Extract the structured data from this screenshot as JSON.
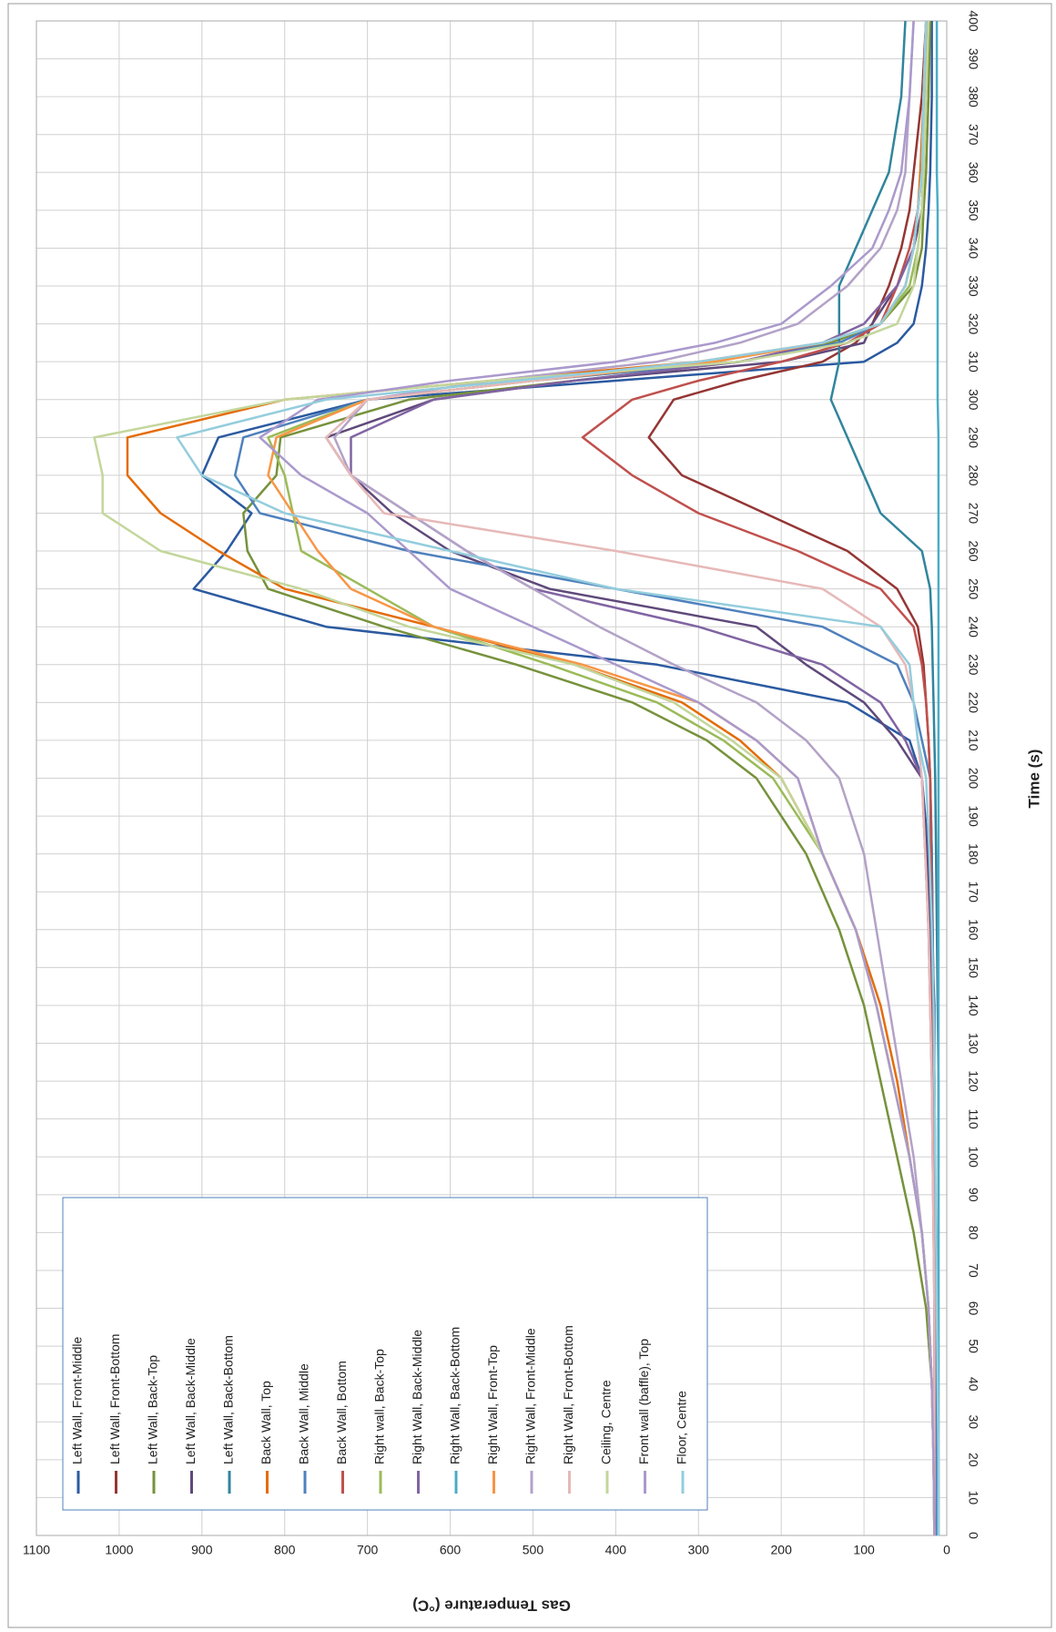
{
  "chart_data": {
    "type": "line",
    "x_label": "Time (s)",
    "y_label": "Gas Temperature (°C)",
    "x": [
      0,
      20,
      40,
      60,
      80,
      100,
      120,
      140,
      160,
      180,
      200,
      210,
      220,
      230,
      240,
      250,
      260,
      270,
      280,
      290,
      300,
      305,
      310,
      315,
      320,
      330,
      340,
      350,
      360,
      380,
      400
    ],
    "xlim": [
      0,
      400
    ],
    "xticks": [
      0,
      10,
      20,
      30,
      40,
      50,
      60,
      70,
      80,
      90,
      100,
      110,
      120,
      130,
      140,
      150,
      160,
      170,
      180,
      190,
      200,
      210,
      220,
      230,
      240,
      250,
      260,
      270,
      280,
      290,
      300,
      310,
      320,
      330,
      340,
      350,
      360,
      370,
      380,
      390,
      400
    ],
    "ylim": [
      0,
      1100
    ],
    "yticks": [
      0,
      100,
      200,
      300,
      400,
      500,
      600,
      700,
      800,
      900,
      1000,
      1100
    ],
    "grid": true,
    "series": [
      {
        "name": "Left Wall, Front-Middle",
        "color": "#2b5aa0",
        "values": [
          15,
          15,
          15,
          15,
          15,
          15,
          15,
          15,
          18,
          22,
          30,
          45,
          120,
          350,
          750,
          910,
          870,
          840,
          900,
          880,
          700,
          400,
          100,
          60,
          40,
          30,
          25,
          22,
          20,
          18,
          18
        ]
      },
      {
        "name": "Left Wall, Front-Bottom",
        "color": "#943634",
        "values": [
          15,
          15,
          15,
          15,
          15,
          15,
          15,
          16,
          17,
          18,
          20,
          22,
          25,
          28,
          35,
          60,
          120,
          220,
          320,
          360,
          330,
          250,
          150,
          110,
          90,
          70,
          55,
          45,
          40,
          30,
          25
        ]
      },
      {
        "name": "Left Wall, Back-Top",
        "color": "#76923c",
        "values": [
          15,
          16,
          18,
          25,
          40,
          60,
          80,
          100,
          130,
          170,
          230,
          290,
          380,
          520,
          680,
          820,
          845,
          850,
          810,
          805,
          650,
          450,
          250,
          140,
          80,
          40,
          30,
          28,
          25,
          22,
          20
        ]
      },
      {
        "name": "Left Wall, Back-Middle",
        "color": "#5f497a",
        "values": [
          15,
          15,
          15,
          15,
          15,
          16,
          17,
          18,
          20,
          24,
          30,
          60,
          100,
          170,
          230,
          480,
          600,
          670,
          720,
          750,
          620,
          450,
          200,
          100,
          90,
          60,
          40,
          30,
          28,
          25,
          22
        ]
      },
      {
        "name": "Left Wall, Back-Bottom",
        "color": "#31859c",
        "values": [
          10,
          10,
          10,
          10,
          10,
          10,
          10,
          11,
          12,
          13,
          14,
          15,
          16,
          17,
          18,
          20,
          30,
          80,
          100,
          120,
          140,
          135,
          130,
          130,
          130,
          130,
          110,
          90,
          70,
          55,
          50
        ]
      },
      {
        "name": "Back Wall, Top",
        "color": "#e46c0a",
        "values": [
          15,
          16,
          18,
          22,
          30,
          45,
          60,
          80,
          110,
          150,
          200,
          250,
          320,
          450,
          620,
          800,
          880,
          950,
          990,
          990,
          800,
          550,
          300,
          150,
          80,
          50,
          40,
          35,
          32,
          28,
          25
        ]
      },
      {
        "name": "Back Wall, Middle",
        "color": "#4f81bd",
        "values": [
          12,
          12,
          13,
          13,
          14,
          14,
          15,
          16,
          17,
          18,
          20,
          30,
          40,
          60,
          150,
          400,
          650,
          830,
          860,
          850,
          700,
          500,
          250,
          130,
          80,
          50,
          40,
          35,
          30,
          28,
          25
        ]
      },
      {
        "name": "Back Wall, Bottom",
        "color": "#c0504d",
        "values": [
          15,
          15,
          15,
          15,
          15,
          16,
          16,
          17,
          18,
          19,
          20,
          22,
          25,
          30,
          40,
          80,
          180,
          300,
          380,
          440,
          380,
          300,
          200,
          120,
          80,
          60,
          45,
          35,
          30,
          25,
          22
        ]
      },
      {
        "name": "Right wall, Back-Top",
        "color": "#9bbb59",
        "values": [
          15,
          16,
          18,
          22,
          30,
          45,
          65,
          85,
          110,
          150,
          210,
          270,
          350,
          480,
          620,
          700,
          780,
          790,
          800,
          820,
          700,
          500,
          280,
          150,
          80,
          45,
          35,
          30,
          28,
          25,
          22
        ]
      },
      {
        "name": "Right Wall, Back-Middle",
        "color": "#8064a2",
        "values": [
          15,
          15,
          15,
          15,
          16,
          17,
          18,
          20,
          22,
          26,
          30,
          50,
          80,
          150,
          300,
          500,
          580,
          650,
          720,
          720,
          620,
          450,
          250,
          150,
          100,
          60,
          40,
          35,
          30,
          28,
          25
        ]
      },
      {
        "name": "Right Wall, Back-Bottom",
        "color": "#4bacc6",
        "values": [
          10,
          10,
          10,
          10,
          10,
          10,
          10,
          10,
          10,
          10,
          10,
          10,
          10,
          10,
          10,
          10,
          10,
          10,
          10,
          10,
          11,
          11,
          11,
          11,
          11,
          11,
          11,
          11,
          12,
          12,
          12
        ]
      },
      {
        "name": "Right Wall, Front-Top",
        "color": "#f79646",
        "values": [
          15,
          16,
          18,
          22,
          30,
          45,
          65,
          85,
          110,
          150,
          180,
          230,
          300,
          440,
          620,
          720,
          760,
          790,
          820,
          810,
          700,
          500,
          280,
          150,
          80,
          50,
          40,
          35,
          30,
          28,
          25
        ]
      },
      {
        "name": "Right Wall, Front-Middle",
        "color": "#b3a2c7",
        "values": [
          15,
          16,
          18,
          22,
          30,
          40,
          55,
          70,
          85,
          100,
          130,
          170,
          230,
          330,
          420,
          500,
          580,
          650,
          720,
          740,
          700,
          550,
          350,
          250,
          180,
          120,
          80,
          60,
          50,
          45,
          40
        ]
      },
      {
        "name": "Right Wall, Front-Bottom",
        "color": "#e6b9b8",
        "values": [
          15,
          15,
          15,
          15,
          16,
          17,
          18,
          20,
          22,
          26,
          30,
          35,
          40,
          50,
          80,
          150,
          400,
          680,
          720,
          750,
          700,
          500,
          300,
          150,
          80,
          50,
          40,
          35,
          30,
          28,
          25
        ]
      },
      {
        "name": "Ceiling, Centre",
        "color": "#c3d69b",
        "values": [
          15,
          16,
          18,
          22,
          30,
          45,
          65,
          85,
          110,
          150,
          200,
          260,
          330,
          450,
          650,
          780,
          950,
          1020,
          1020,
          1030,
          800,
          550,
          250,
          120,
          60,
          40,
          35,
          30,
          28,
          25,
          22
        ]
      },
      {
        "name": "Front wall (baffle), Top",
        "color": "#aa99cc",
        "values": [
          15,
          16,
          18,
          22,
          30,
          45,
          65,
          85,
          110,
          150,
          180,
          230,
          300,
          400,
          500,
          600,
          650,
          700,
          780,
          830,
          760,
          600,
          400,
          280,
          200,
          140,
          90,
          70,
          55,
          45,
          40
        ]
      },
      {
        "name": "Floor, Centre",
        "color": "#93cddd",
        "values": [
          10,
          10,
          11,
          12,
          13,
          14,
          15,
          16,
          18,
          21,
          25,
          35,
          40,
          45,
          80,
          400,
          600,
          800,
          900,
          930,
          750,
          520,
          300,
          150,
          80,
          50,
          40,
          35,
          30,
          28,
          25
        ]
      }
    ]
  }
}
